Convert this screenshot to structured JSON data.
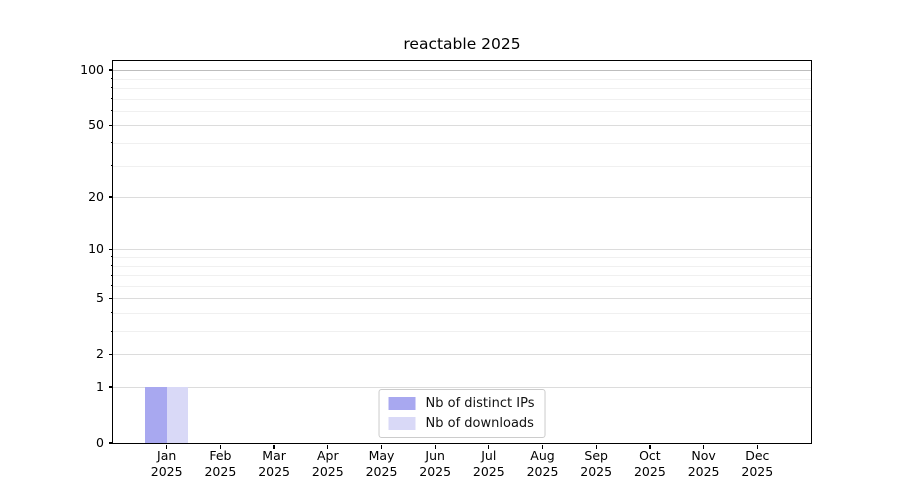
{
  "chart_data": {
    "type": "bar",
    "title": "reactable 2025",
    "categories": [
      "Jan\n2025",
      "Feb\n2025",
      "Mar\n2025",
      "Apr\n2025",
      "May\n2025",
      "Jun\n2025",
      "Jul\n2025",
      "Aug\n2025",
      "Sep\n2025",
      "Oct\n2025",
      "Nov\n2025",
      "Dec\n2025"
    ],
    "series": [
      {
        "name": "Nb of distinct IPs",
        "color": "#a8a8f0",
        "values": [
          1,
          0,
          0,
          0,
          0,
          0,
          0,
          0,
          0,
          0,
          0,
          0
        ]
      },
      {
        "name": "Nb of downloads",
        "color": "#d9d9f7",
        "values": [
          1,
          0,
          0,
          0,
          0,
          0,
          0,
          0,
          0,
          0,
          0,
          0
        ]
      }
    ],
    "yscale": "log1p",
    "ylim": [
      0,
      112
    ],
    "y_major_ticks": [
      100,
      50,
      20,
      10,
      5,
      2,
      1,
      0
    ],
    "y_minor_ticks": [
      90,
      80,
      70,
      60,
      40,
      30,
      9,
      8,
      7,
      6,
      4,
      3
    ],
    "xlabel": "",
    "ylabel": "",
    "grid": true,
    "legend_position": "lower center"
  }
}
